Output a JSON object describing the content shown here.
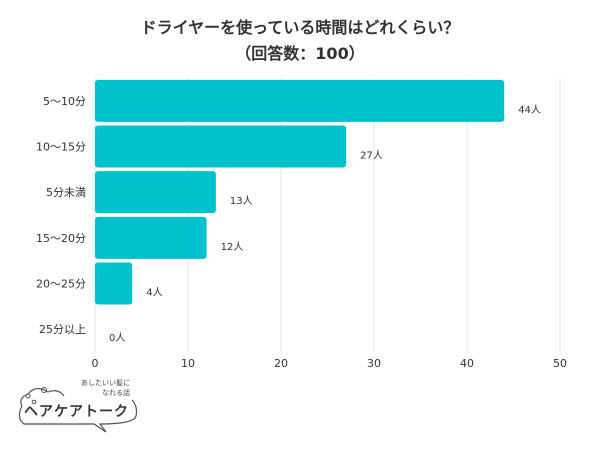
{
  "chart_data": {
    "type": "bar",
    "orientation": "horizontal",
    "title": "ドライヤーを使っている時間はどれくらい？",
    "subtitle": "（回答数：100）",
    "categories": [
      "5〜10分",
      "10〜15分",
      "5分未満",
      "15〜20分",
      "20〜25分",
      "25分以上"
    ],
    "values": [
      44,
      27,
      13,
      12,
      4,
      0
    ],
    "data_labels": [
      "44人",
      "27人",
      "13人",
      "12人",
      "4人",
      "0人"
    ],
    "xlim": [
      0,
      50
    ],
    "xticks": [
      "0",
      "10",
      "20",
      "30",
      "40",
      "50"
    ],
    "grid": true,
    "bar_color": "#00c2cc"
  },
  "logo": {
    "name": "ヘアケアトーク",
    "tagline_1": "あしたいい髪に",
    "tagline_2": "なれる話"
  }
}
